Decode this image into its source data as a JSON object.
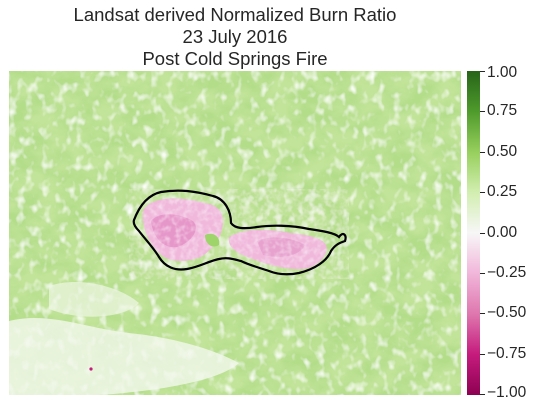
{
  "chart_data": {
    "type": "heatmap",
    "title_lines": [
      "Landsat derived Normalized Burn Ratio",
      "23 July 2016",
      "Post Cold Springs Fire"
    ],
    "grid": "off",
    "colorbar": {
      "position": "right",
      "range": [
        -1.0,
        1.0
      ],
      "colormap": "PiYG",
      "ticks": [
        1.0,
        0.75,
        0.5,
        0.25,
        0.0,
        -0.25,
        -0.5,
        -0.75,
        -1.0
      ],
      "tick_labels": [
        "1.00",
        "0.75",
        "0.50",
        "0.25",
        "0.00",
        "−0.25",
        "−0.50",
        "−0.75",
        "−1.00"
      ],
      "stops": [
        {
          "value": -1.0,
          "color": "#8e0152"
        },
        {
          "value": -0.75,
          "color": "#c51b7d"
        },
        {
          "value": -0.5,
          "color": "#de77ae"
        },
        {
          "value": -0.25,
          "color": "#f1b6da"
        },
        {
          "value": 0.0,
          "color": "#f7f7f7"
        },
        {
          "value": 0.25,
          "color": "#d2eeb0"
        },
        {
          "value": 0.5,
          "color": "#97cf5d"
        },
        {
          "value": 0.75,
          "color": "#4f9a2c"
        },
        {
          "value": 1.0,
          "color": "#276419"
        }
      ]
    },
    "fire_boundary": {
      "color": "#000000"
    },
    "ranges": {
      "background_nbr": [
        0.1,
        0.6
      ],
      "burn_scar_nbr": [
        -0.4,
        -0.2
      ]
    }
  }
}
